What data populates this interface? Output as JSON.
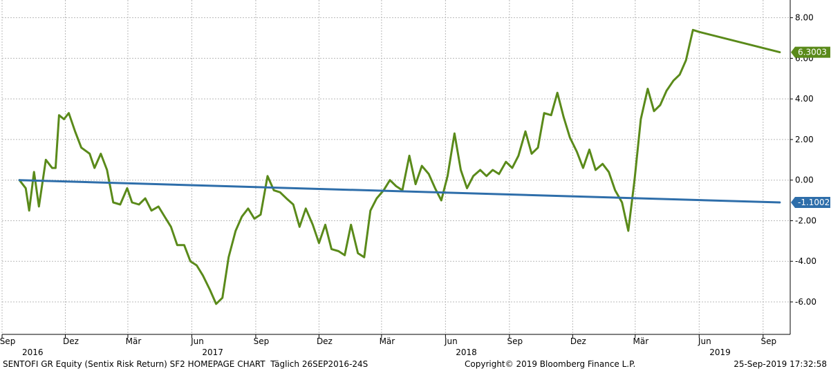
{
  "chart_data": {
    "type": "line",
    "xlim": [
      "2016-09-01",
      "2019-10-10"
    ],
    "ylim": [
      -7.6,
      8.6
    ],
    "yticks": [
      8,
      6,
      4,
      2,
      0,
      -2,
      -4,
      -6
    ],
    "ytick_labels": [
      "8.00",
      "6.00",
      "4.00",
      "2.00",
      "0.00",
      "-2.00",
      "-4.00",
      "-6.00"
    ],
    "month_ticks": [
      {
        "date": "2016-09-01",
        "label": "Sep"
      },
      {
        "date": "2016-12-01",
        "label": "Dez"
      },
      {
        "date": "2017-03-01",
        "label": "Mär"
      },
      {
        "date": "2017-06-01",
        "label": "Jun"
      },
      {
        "date": "2017-09-01",
        "label": "Sep"
      },
      {
        "date": "2017-12-01",
        "label": "Dez"
      },
      {
        "date": "2018-03-01",
        "label": "Mär"
      },
      {
        "date": "2018-06-01",
        "label": "Jun"
      },
      {
        "date": "2018-09-01",
        "label": "Sep"
      },
      {
        "date": "2018-12-01",
        "label": "Dez"
      },
      {
        "date": "2019-03-01",
        "label": "Mär"
      },
      {
        "date": "2019-06-01",
        "label": "Jun"
      },
      {
        "date": "2019-09-01",
        "label": "Sep"
      }
    ],
    "year_labels": [
      {
        "date": "2016-10-15",
        "label": "2016"
      },
      {
        "date": "2017-07-01",
        "label": "2017"
      },
      {
        "date": "2018-07-01",
        "label": "2018"
      },
      {
        "date": "2019-07-01",
        "label": "2019"
      }
    ],
    "series": [
      {
        "color": "#5a8a1a",
        "last_value_label": "6.3003",
        "points": [
          [
            "2016-09-26",
            0.0
          ],
          [
            "2016-10-05",
            -0.4
          ],
          [
            "2016-10-10",
            -1.5
          ],
          [
            "2016-10-17",
            0.4
          ],
          [
            "2016-10-24",
            -1.3
          ],
          [
            "2016-11-03",
            1.0
          ],
          [
            "2016-11-12",
            0.6
          ],
          [
            "2016-11-17",
            0.6
          ],
          [
            "2016-11-22",
            3.2
          ],
          [
            "2016-11-29",
            3.0
          ],
          [
            "2016-12-06",
            3.3
          ],
          [
            "2016-12-15",
            2.4
          ],
          [
            "2016-12-24",
            1.6
          ],
          [
            "2017-01-05",
            1.3
          ],
          [
            "2017-01-12",
            0.6
          ],
          [
            "2017-01-21",
            1.3
          ],
          [
            "2017-01-30",
            0.5
          ],
          [
            "2017-02-08",
            -1.1
          ],
          [
            "2017-02-18",
            -1.2
          ],
          [
            "2017-02-28",
            -0.4
          ],
          [
            "2017-03-07",
            -1.1
          ],
          [
            "2017-03-17",
            -1.2
          ],
          [
            "2017-03-26",
            -0.9
          ],
          [
            "2017-04-04",
            -1.5
          ],
          [
            "2017-04-14",
            -1.3
          ],
          [
            "2017-04-23",
            -1.8
          ],
          [
            "2017-05-02",
            -2.3
          ],
          [
            "2017-05-11",
            -3.2
          ],
          [
            "2017-05-21",
            -3.2
          ],
          [
            "2017-05-30",
            -4.0
          ],
          [
            "2017-06-08",
            -4.2
          ],
          [
            "2017-06-17",
            -4.7
          ],
          [
            "2017-06-27",
            -5.4
          ],
          [
            "2017-07-06",
            -6.1
          ],
          [
            "2017-07-15",
            -5.8
          ],
          [
            "2017-07-24",
            -3.8
          ],
          [
            "2017-08-03",
            -2.5
          ],
          [
            "2017-08-12",
            -1.8
          ],
          [
            "2017-08-21",
            -1.4
          ],
          [
            "2017-08-30",
            -1.9
          ],
          [
            "2017-09-08",
            -1.7
          ],
          [
            "2017-09-18",
            0.2
          ],
          [
            "2017-09-27",
            -0.5
          ],
          [
            "2017-10-06",
            -0.6
          ],
          [
            "2017-10-15",
            -0.9
          ],
          [
            "2017-10-25",
            -1.2
          ],
          [
            "2017-11-03",
            -2.3
          ],
          [
            "2017-11-12",
            -1.4
          ],
          [
            "2017-11-22",
            -2.2
          ],
          [
            "2017-12-01",
            -3.1
          ],
          [
            "2017-12-10",
            -2.2
          ],
          [
            "2017-12-19",
            -3.4
          ],
          [
            "2017-12-29",
            -3.5
          ],
          [
            "2018-01-07",
            -3.7
          ],
          [
            "2018-01-16",
            -2.2
          ],
          [
            "2018-01-26",
            -3.6
          ],
          [
            "2018-02-04",
            -3.8
          ],
          [
            "2018-02-13",
            -1.5
          ],
          [
            "2018-02-22",
            -0.9
          ],
          [
            "2018-03-04",
            -0.5
          ],
          [
            "2018-03-13",
            0.0
          ],
          [
            "2018-03-22",
            -0.3
          ],
          [
            "2018-03-31",
            -0.5
          ],
          [
            "2018-04-10",
            1.2
          ],
          [
            "2018-04-19",
            -0.2
          ],
          [
            "2018-04-28",
            0.7
          ],
          [
            "2018-05-08",
            0.3
          ],
          [
            "2018-05-17",
            -0.4
          ],
          [
            "2018-05-26",
            -1.0
          ],
          [
            "2018-06-04",
            0.2
          ],
          [
            "2018-06-14",
            2.3
          ],
          [
            "2018-06-23",
            0.5
          ],
          [
            "2018-07-02",
            -0.4
          ],
          [
            "2018-07-11",
            0.2
          ],
          [
            "2018-07-21",
            0.5
          ],
          [
            "2018-07-30",
            0.2
          ],
          [
            "2018-08-08",
            0.5
          ],
          [
            "2018-08-17",
            0.3
          ],
          [
            "2018-08-27",
            0.9
          ],
          [
            "2018-09-05",
            0.6
          ],
          [
            "2018-09-14",
            1.2
          ],
          [
            "2018-09-24",
            2.4
          ],
          [
            "2018-10-03",
            1.3
          ],
          [
            "2018-10-12",
            1.6
          ],
          [
            "2018-10-21",
            3.3
          ],
          [
            "2018-10-31",
            3.2
          ],
          [
            "2018-11-09",
            4.3
          ],
          [
            "2018-11-18",
            3.1
          ],
          [
            "2018-11-27",
            2.1
          ],
          [
            "2018-12-07",
            1.4
          ],
          [
            "2018-12-16",
            0.6
          ],
          [
            "2018-12-25",
            1.5
          ],
          [
            "2019-01-03",
            0.5
          ],
          [
            "2019-01-13",
            0.8
          ],
          [
            "2019-01-22",
            0.4
          ],
          [
            "2019-01-31",
            -0.5
          ],
          [
            "2019-02-10",
            -1.1
          ],
          [
            "2019-02-19",
            -2.5
          ],
          [
            "2019-02-28",
            0.0
          ],
          [
            "2019-03-09",
            3.0
          ],
          [
            "2019-03-19",
            4.5
          ],
          [
            "2019-03-28",
            3.4
          ],
          [
            "2019-04-06",
            3.7
          ],
          [
            "2019-04-15",
            4.4
          ],
          [
            "2019-04-25",
            4.9
          ],
          [
            "2019-05-04",
            5.2
          ],
          [
            "2019-05-13",
            5.9
          ],
          [
            "2019-05-23",
            7.4
          ],
          [
            "2019-06-01",
            7.3
          ],
          [
            "2019-09-25",
            6.3
          ]
        ]
      },
      {
        "color": "#2e6eaa",
        "last_value_label": "-1.1002",
        "points": [
          [
            "2016-09-26",
            0.0
          ],
          [
            "2019-09-25",
            -1.1
          ]
        ]
      }
    ],
    "footer_left": "SENTOFI GR Equity (Sentix Risk Return) SF2 HOMEPAGE CHART  Täglich 26SEP2016-24S",
    "footer_mid": "Copyright© 2019 Bloomberg Finance L.P.",
    "footer_right": "25-Sep-2019 17:32:58"
  }
}
